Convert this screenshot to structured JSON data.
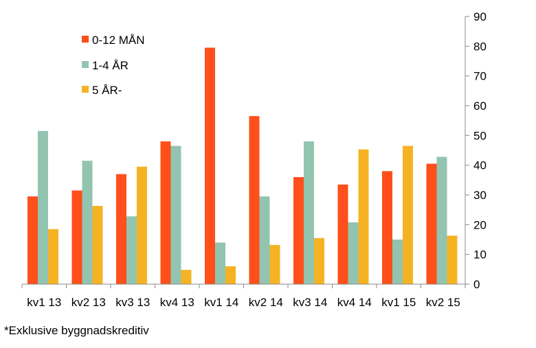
{
  "chart_data": {
    "type": "bar",
    "categories": [
      "kv1 13",
      "kv2 13",
      "kv3 13",
      "kv4 13",
      "kv1 14",
      "kv2 14",
      "kv3 14",
      "kv4 14",
      "kv1 15",
      "kv2 15"
    ],
    "series": [
      {
        "name": "0-12 MÅN",
        "color": "#ff4f1a",
        "values": [
          29.5,
          31.5,
          37,
          48,
          79.5,
          56.5,
          36,
          33.5,
          38,
          40.5
        ]
      },
      {
        "name": "1-4 ÅR",
        "color": "#93c4b0",
        "values": [
          51.5,
          41.5,
          22.8,
          46.5,
          14,
          29.5,
          48,
          20.8,
          15,
          42.8
        ]
      },
      {
        "name": "5 ÅR-",
        "color": "#f5b324",
        "values": [
          18.5,
          26.3,
          39.5,
          4.8,
          6,
          13.2,
          15.5,
          45.3,
          46.5,
          16.3
        ]
      }
    ],
    "ylim": [
      0,
      90
    ],
    "yticks": [
      0,
      10,
      20,
      30,
      40,
      50,
      60,
      70,
      80,
      90
    ],
    "y_axis_side": "right",
    "legend_position": "top-left",
    "grid": false
  },
  "footnote": "*Exklusive byggnadskreditiv"
}
